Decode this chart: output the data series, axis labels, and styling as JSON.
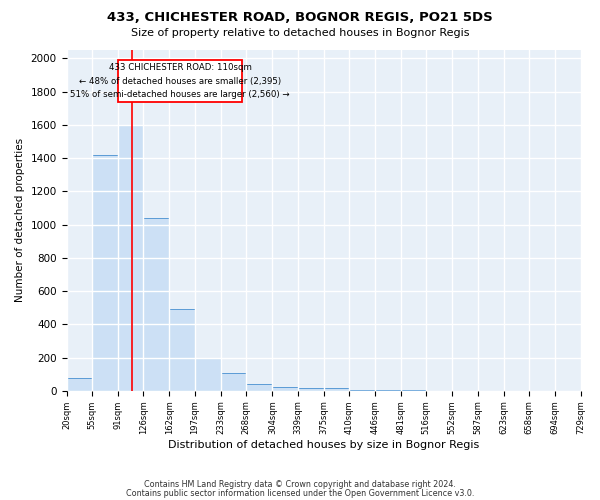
{
  "title1": "433, CHICHESTER ROAD, BOGNOR REGIS, PO21 5DS",
  "title2": "Size of property relative to detached houses in Bognor Regis",
  "xlabel": "Distribution of detached houses by size in Bognor Regis",
  "ylabel": "Number of detached properties",
  "footnote1": "Contains HM Land Registry data © Crown copyright and database right 2024.",
  "footnote2": "Contains public sector information licensed under the Open Government Licence v3.0.",
  "bin_edges": [
    20,
    55,
    91,
    126,
    162,
    197,
    233,
    268,
    304,
    339,
    375,
    410,
    446,
    481,
    516,
    552,
    587,
    623,
    658,
    694,
    729
  ],
  "bar_heights": [
    80,
    1420,
    1600,
    1040,
    490,
    200,
    105,
    40,
    25,
    20,
    15,
    5,
    5,
    3,
    2,
    2,
    1,
    1,
    1,
    1
  ],
  "bar_color": "#cce0f5",
  "bar_edge_color": "#5b9bd5",
  "background_color": "#e8f0f8",
  "grid_color": "#ffffff",
  "red_line_x": 110,
  "annotation_line1": "433 CHICHESTER ROAD: 110sqm",
  "annotation_line2": "← 48% of detached houses are smaller (2,395)",
  "annotation_line3": "51% of semi-detached houses are larger (2,560) →",
  "ylim": [
    0,
    2050
  ],
  "yticks": [
    0,
    200,
    400,
    600,
    800,
    1000,
    1200,
    1400,
    1600,
    1800,
    2000
  ]
}
